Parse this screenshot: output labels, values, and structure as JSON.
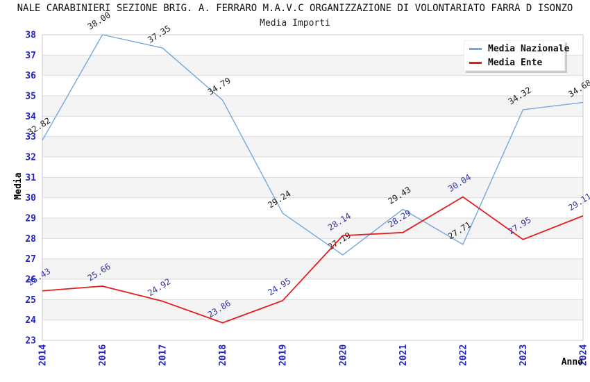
{
  "chart_data": {
    "type": "line",
    "title": "NALE CARABINIERI SEZIONE BRIG. A. FERRARO M.A.V.C ORGANIZZAZIONE DI VOLONTARIATO FARRA D ISONZO",
    "subtitle": "Media Importi",
    "xlabel": "Anno",
    "ylabel": "Media",
    "categories": [
      "2014",
      "2016",
      "2017",
      "2018",
      "2019",
      "2020",
      "2021",
      "2022",
      "2023",
      "2024"
    ],
    "series": [
      {
        "name": "Media Nazionale",
        "color": "#74A7DB",
        "label_color": "#1b1b1b",
        "values": [
          32.82,
          38.0,
          37.35,
          34.79,
          29.24,
          27.19,
          29.43,
          27.71,
          34.32,
          34.68
        ]
      },
      {
        "name": "Media Ente",
        "color": "#E51C1C",
        "label_color": "#32329B",
        "values": [
          25.43,
          25.66,
          24.92,
          23.86,
          24.95,
          28.14,
          28.29,
          30.04,
          27.95,
          29.11
        ]
      }
    ],
    "ylim": [
      23,
      38
    ],
    "ytick_step": 1,
    "grid": "on",
    "value_label_decimals": 2,
    "legend_position": "top-right",
    "colors": {
      "band_even": "#ffffff",
      "band_odd": "#f4f4f4",
      "grid": "#dcdcdc",
      "border": "#c8c8c8",
      "tick_label": "#2121CE"
    }
  }
}
